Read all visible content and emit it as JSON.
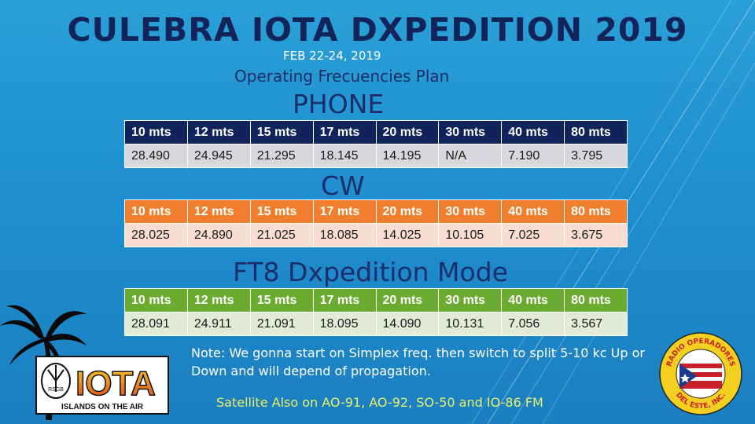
{
  "title": "CULEBRA IOTA DXPEDITION 2019",
  "date": "FEB 22-24, 2019",
  "subtitle": "Operating Frecuencies Plan",
  "bands": [
    "10 mts",
    "12 mts",
    "15 mts",
    "17 mts",
    "20 mts",
    "30 mts",
    "40 mts",
    "80 mts"
  ],
  "phone": {
    "label": "PHONE",
    "values": [
      "28.490",
      "24.945",
      "21.295",
      "18.145",
      "14.195",
      "N/A",
      "7.190",
      "3.795"
    ]
  },
  "cw": {
    "label": "CW",
    "values": [
      "28.025",
      "24.890",
      "21.025",
      "18.085",
      "14.025",
      "10.105",
      "7.025",
      "3.675"
    ]
  },
  "ft8": {
    "label": "FT8 Dxpedition Mode",
    "values": [
      "28.091",
      "24.911",
      "21.091",
      "18.095",
      "14.090",
      "10.131",
      "7.056",
      "3.567"
    ]
  },
  "note": "Note: We gonna start on Simplex freq. then switch to split 5-10 kc Up or Down and will depend of propagation.",
  "satellite": "Satellite Also on AO-91, AO-92, SO-50 and IO-86 FM",
  "iota_logo": {
    "rsgb": "RSGB",
    "big": "IOTA",
    "tagline": "ISLANDS ON THE AIR"
  },
  "badge": {
    "top": "RADIO OPERADORES",
    "bottom": "DEL ESTE, INC."
  },
  "colors": {
    "phone": "#10235a",
    "cw": "#ef7f2d",
    "ft8": "#6aab30",
    "title": "#13245a"
  }
}
